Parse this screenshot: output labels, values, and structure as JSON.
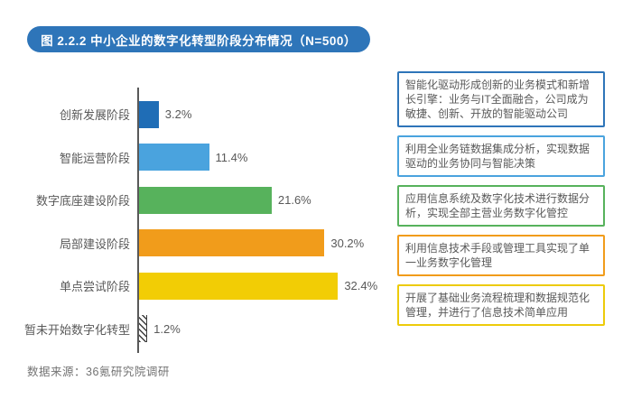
{
  "title": "图 2.2.2 中小企业的数字化转型阶段分布情况（N=500）",
  "source": "数据来源：36氪研究院调研",
  "colors": {
    "banner": "#2e75b9",
    "axis": "#595959",
    "label_text": "#595959",
    "source_text": "#737373"
  },
  "chart_data": {
    "type": "bar",
    "orientation": "horizontal",
    "title": "图 2.2.2 中小企业的数字化转型阶段分布情况（N=500）",
    "xlabel": "",
    "ylabel": "",
    "xlim": [
      0,
      35
    ],
    "grid": false,
    "legend": false,
    "categories": [
      "创新发展阶段",
      "智能运营阶段",
      "数字底座建设阶段",
      "局部建设阶段",
      "单点尝试阶段",
      "暂未开始数字化转型"
    ],
    "values": [
      3.2,
      11.4,
      21.6,
      30.2,
      32.4,
      1.2
    ],
    "display_values": [
      "3.2%",
      "11.4%",
      "21.6%",
      "30.2%",
      "32.4%",
      "1.2%"
    ],
    "bar_colors": [
      "#1f6db6",
      "#4aa3de",
      "#57b25c",
      "#f19c1b",
      "#f2cd05",
      "hatch"
    ]
  },
  "annotations": [
    {
      "text": "智能化驱动形成创新的业务模式和新增长引擎：业务与IT全面融合，公司成为敏捷、创新、开放的智能驱动公司",
      "color": "#2e75b9"
    },
    {
      "text": "利用全业务链数据集成分析，实现数据驱动的业务协同与智能决策",
      "color": "#4aa3de"
    },
    {
      "text": "应用信息系统及数字化技术进行数据分析，实现全部主营业务数字化管控",
      "color": "#57b25c"
    },
    {
      "text": "利用信息技术手段或管理工具实现了单一业务数字化管理",
      "color": "#f19c1b"
    },
    {
      "text": "开展了基础业务流程梳理和数据规范化管理，并进行了信息技术简单应用",
      "color": "#edcb0a"
    }
  ]
}
